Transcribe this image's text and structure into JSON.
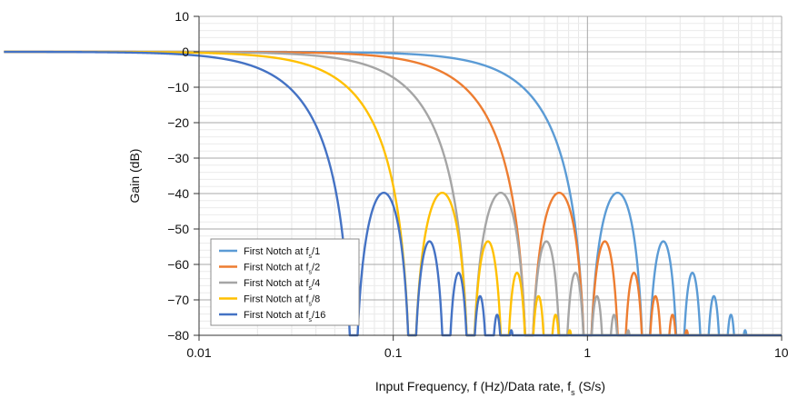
{
  "chart_data": {
    "type": "line",
    "xlabel": "Input Frequency, f (Hz)/Data rate, f (S/s)",
    "xlabel_subscript": "s",
    "ylabel": "Gain (dB)",
    "x_scale": "log",
    "xlim": [
      0.01,
      10
    ],
    "ylim": [
      -80,
      10
    ],
    "x_ticks": [
      0.01,
      0.1,
      1,
      10
    ],
    "x_tick_labels": [
      "0.01",
      "0.1",
      "1",
      "10"
    ],
    "y_ticks": [
      10,
      0,
      -10,
      -20,
      -30,
      -40,
      -50,
      -60,
      -70,
      -80
    ],
    "y_tick_labels": [
      "10",
      "0",
      "−10",
      "−20",
      "−30",
      "−40",
      "−50",
      "−60",
      "−70",
      "−80"
    ],
    "grid": "major-and-minor",
    "legend_position": "lower-left",
    "series": [
      {
        "name": "First Notch at f/1",
        "name_prefix": "First Notch at f",
        "name_sub": "s",
        "name_suffix": "/1",
        "first_notch": 1,
        "color": "#5b9bd5"
      },
      {
        "name": "First Notch at f/2",
        "name_prefix": "First Notch at f",
        "name_sub": "s",
        "name_suffix": "/2",
        "first_notch": 0.5,
        "color": "#ed7d31"
      },
      {
        "name": "First Notch at f/4",
        "name_prefix": "First Notch at f",
        "name_sub": "s",
        "name_suffix": "/4",
        "first_notch": 0.25,
        "color": "#a5a5a5"
      },
      {
        "name": "First Notch at f/8",
        "name_prefix": "First Notch at f",
        "name_sub": "s",
        "name_suffix": "/8",
        "first_notch": 0.125,
        "color": "#ffc000"
      },
      {
        "name": "First Notch at f/16",
        "name_prefix": "First Notch at f",
        "name_sub": "s",
        "name_suffix": "/16",
        "first_notch": 0.0625,
        "color": "#4472c4"
      }
    ]
  }
}
